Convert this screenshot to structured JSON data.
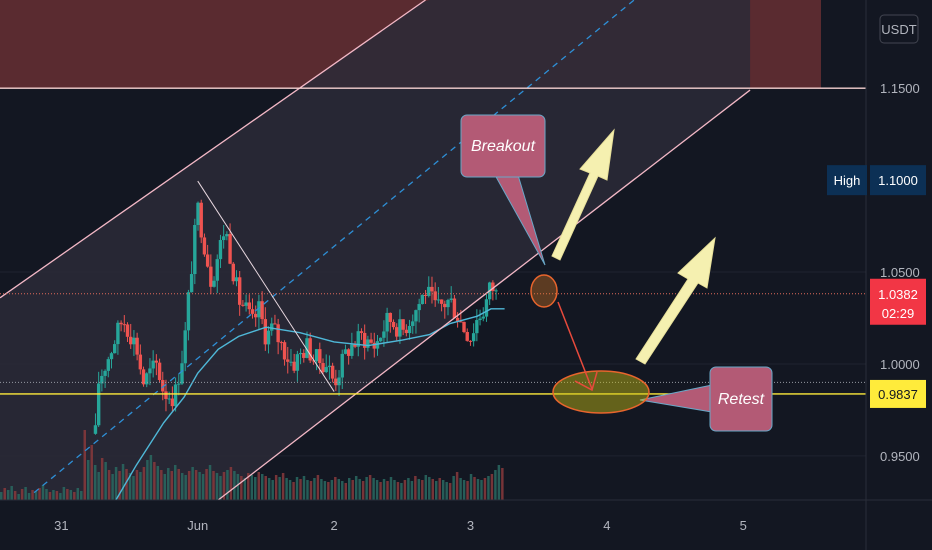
{
  "chart_data": {
    "type": "candlestick",
    "currency_label": "USDT",
    "x_ticks": [
      {
        "label": "31",
        "time": 0.45
      },
      {
        "label": "Jun",
        "time": 1.45
      },
      {
        "label": "2",
        "time": 2.45
      },
      {
        "label": "3",
        "time": 3.45
      },
      {
        "label": "4",
        "time": 4.45
      },
      {
        "label": "5",
        "time": 5.45
      }
    ],
    "y_ticks": [
      {
        "label": "1.1500",
        "value": 1.15
      },
      {
        "label": "1.0500",
        "value": 1.05
      },
      {
        "label": "1.0000",
        "value": 1.0
      },
      {
        "label": "0.9500",
        "value": 0.95
      }
    ],
    "ylim": [
      0.926,
      1.198
    ],
    "xlim": [
      0.0,
      6.35
    ],
    "price_tags": [
      {
        "id": "high",
        "label": "High",
        "value_label": "1.1000",
        "value": 1.1,
        "bg": "#0c3055",
        "fg": "#ffffff"
      },
      {
        "id": "last",
        "value_label": "1.0382",
        "sub_label": "02:29",
        "value": 1.0382,
        "bg": "#f23645",
        "fg": "#ffffff"
      },
      {
        "id": "level",
        "value_label": "0.9837",
        "value": 0.9837,
        "bg": "#ffeb3b",
        "fg": "#131722"
      }
    ],
    "horizontal_lines": [
      {
        "value": 1.15,
        "color": "#f5d0d0"
      },
      {
        "value": 0.9837,
        "color": "#ffeb3b"
      },
      {
        "value": 1.0382,
        "color": "#e06a5a",
        "dotted": true
      },
      {
        "value": 0.99,
        "color": "#9598a1",
        "dotted": true
      }
    ],
    "resistance_zone": {
      "from": 1.15,
      "to": 1.198,
      "color": "#5a2b30"
    },
    "channel": {
      "upper": [
        [
          0.0,
          1.036
        ],
        [
          3.12,
          1.198
        ]
      ],
      "lower": [
        [
          1.6,
          0.926
        ],
        [
          5.5,
          1.149
        ]
      ],
      "mid": [
        [
          0.25,
          0.93
        ],
        [
          4.65,
          1.198
        ]
      ],
      "fill": "#2c2a37"
    },
    "trendline": [
      [
        1.45,
        1.0995
      ],
      [
        2.45,
        0.985
      ]
    ],
    "ma_line": [
      [
        0.85,
        0.926
      ],
      [
        1.0,
        0.945
      ],
      [
        1.2,
        0.968
      ],
      [
        1.35,
        0.982
      ],
      [
        1.45,
        0.995
      ],
      [
        1.6,
        1.008
      ],
      [
        1.75,
        1.015
      ],
      [
        1.95,
        1.02
      ],
      [
        2.2,
        1.017
      ],
      [
        2.45,
        1.012
      ],
      [
        2.7,
        1.01
      ],
      [
        2.95,
        1.013
      ],
      [
        3.15,
        1.016
      ],
      [
        3.3,
        1.022
      ],
      [
        3.5,
        1.026
      ],
      [
        3.6,
        1.03
      ],
      [
        3.7,
        1.03
      ]
    ],
    "volume_heights": [
      8,
      12,
      10,
      14,
      9,
      6,
      11,
      13,
      7,
      10,
      9,
      12,
      15,
      11,
      8,
      10,
      9,
      7,
      13,
      11,
      10,
      8,
      12,
      9,
      70,
      40,
      55,
      35,
      28,
      42,
      38,
      30,
      26,
      33,
      29,
      36,
      31,
      27,
      24,
      30,
      28,
      33,
      40,
      45,
      38,
      34,
      30,
      26,
      32,
      29,
      35,
      31,
      27,
      25,
      29,
      33,
      30,
      28,
      26,
      31,
      35,
      29,
      27,
      24,
      28,
      30,
      33,
      29,
      26,
      24,
      22,
      27,
      25,
      23,
      28,
      26,
      24,
      22,
      20,
      25,
      23,
      27,
      22,
      20,
      18,
      23,
      21,
      24,
      20,
      19,
      22,
      25,
      21,
      19,
      18,
      20,
      23,
      21,
      19,
      17,
      22,
      20,
      24,
      21,
      19,
      23,
      25,
      22,
      20,
      18,
      21,
      19,
      23,
      20,
      18,
      17,
      20,
      22,
      19,
      24,
      21,
      20,
      25,
      23,
      21,
      19,
      22,
      20,
      18,
      17,
      24,
      28,
      22,
      20,
      19,
      26,
      23,
      21,
      20,
      22,
      24,
      26,
      30,
      35,
      32
    ],
    "annotations": [
      {
        "text": "Breakout"
      },
      {
        "text": "Retest"
      }
    ]
  }
}
